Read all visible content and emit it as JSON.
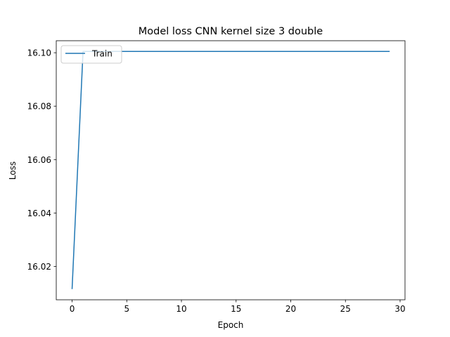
{
  "chart_data": {
    "type": "line",
    "title": "Model loss CNN kernel size 3 double",
    "xlabel": "Epoch",
    "ylabel": "Loss",
    "xlim": [
      -1.45,
      30.45
    ],
    "ylim": [
      16.0075,
      16.1045
    ],
    "xticks": [
      0,
      5,
      10,
      15,
      20,
      25,
      30
    ],
    "xtick_labels": [
      "0",
      "5",
      "10",
      "15",
      "20",
      "25",
      "30"
    ],
    "yticks": [
      16.02,
      16.04,
      16.06,
      16.08,
      16.1
    ],
    "ytick_labels": [
      "16.02",
      "16.04",
      "16.06",
      "16.08",
      "16.10"
    ],
    "grid": false,
    "legend_position": "upper-left",
    "series": [
      {
        "name": "Train",
        "color": "#1f77b4",
        "x": [
          0,
          1,
          2,
          3,
          4,
          5,
          6,
          7,
          8,
          9,
          10,
          11,
          12,
          13,
          14,
          15,
          16,
          17,
          18,
          19,
          20,
          21,
          22,
          23,
          24,
          25,
          26,
          27,
          28,
          29
        ],
        "y": [
          16.0117,
          16.1005,
          16.1005,
          16.1005,
          16.1005,
          16.1005,
          16.1005,
          16.1005,
          16.1005,
          16.1005,
          16.1005,
          16.1005,
          16.1005,
          16.1005,
          16.1005,
          16.1005,
          16.1005,
          16.1005,
          16.1005,
          16.1005,
          16.1005,
          16.1005,
          16.1005,
          16.1005,
          16.1005,
          16.1005,
          16.1005,
          16.1005,
          16.1005,
          16.1005
        ]
      }
    ]
  }
}
